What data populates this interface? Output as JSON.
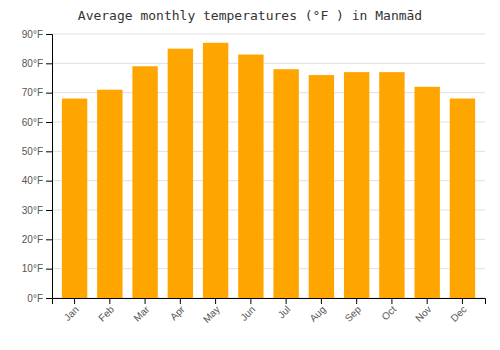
{
  "chart_data": {
    "type": "bar",
    "title": "Average monthly temperatures (°F ) in Manmād",
    "categories": [
      "Jan",
      "Feb",
      "Mar",
      "Apr",
      "May",
      "Jun",
      "Jul",
      "Aug",
      "Sep",
      "Oct",
      "Nov",
      "Dec"
    ],
    "values": [
      68,
      71,
      79,
      85,
      87,
      83,
      78,
      76,
      77,
      77,
      72,
      68
    ],
    "color": "#FFA500",
    "ylim": [
      0,
      90
    ],
    "yticks": [
      {
        "value": 0,
        "label": "0°F"
      },
      {
        "value": 10,
        "label": "10°F"
      },
      {
        "value": 20,
        "label": "20°F"
      },
      {
        "value": 30,
        "label": "30°F"
      },
      {
        "value": 40,
        "label": "40°F"
      },
      {
        "value": 50,
        "label": "50°F"
      },
      {
        "value": 60,
        "label": "60°F"
      },
      {
        "value": 70,
        "label": "70°F"
      },
      {
        "value": 80,
        "label": "80°F"
      },
      {
        "value": 90,
        "label": "90°F"
      }
    ],
    "grid": true
  }
}
